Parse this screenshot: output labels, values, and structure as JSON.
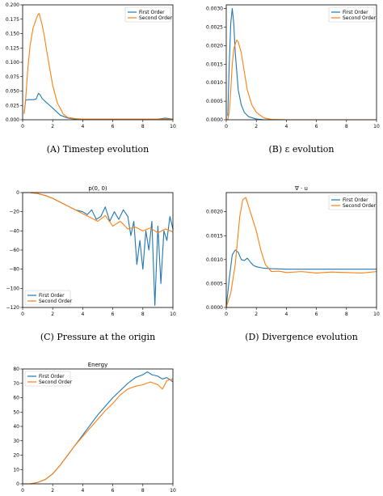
{
  "chart_data": [
    {
      "type": "line",
      "title": "",
      "caption": "(A) Timestep evolution",
      "xlim": [
        0,
        10
      ],
      "ylim": [
        0,
        0.2
      ],
      "xticks": [
        "0",
        "2",
        "4",
        "6",
        "8",
        "10"
      ],
      "yticks": [
        "0.000",
        "0.025",
        "0.050",
        "0.075",
        "0.100",
        "0.125",
        "0.150",
        "0.175",
        "0.200"
      ],
      "legend_position": "top-right",
      "series": [
        {
          "name": "First Order",
          "color": "#1f77b4",
          "x": [
            0.1,
            0.2,
            0.35,
            0.5,
            0.7,
            0.9,
            1.05,
            1.15,
            1.3,
            1.5,
            1.8,
            2.1,
            2.5,
            3.0,
            3.5,
            4.0,
            5.0,
            6.0,
            7.0,
            8.0,
            9.0,
            9.5,
            10.0
          ],
          "values": [
            0.012,
            0.034,
            0.035,
            0.035,
            0.035,
            0.036,
            0.046,
            0.044,
            0.037,
            0.032,
            0.025,
            0.018,
            0.008,
            0.003,
            0.001,
            0.001,
            0.001,
            0.001,
            0.001,
            0.001,
            0.001,
            0.003,
            0.001
          ]
        },
        {
          "name": "Second Order",
          "color": "#ff7f0e",
          "x": [
            0.1,
            0.2,
            0.35,
            0.5,
            0.7,
            0.9,
            1.0,
            1.1,
            1.2,
            1.3,
            1.45,
            1.6,
            1.8,
            2.0,
            2.3,
            2.7,
            3.0,
            3.5,
            4.0,
            5.0,
            6.0,
            7.0,
            8.0,
            9.0,
            10.0
          ],
          "values": [
            0.01,
            0.035,
            0.09,
            0.13,
            0.16,
            0.175,
            0.182,
            0.185,
            0.175,
            0.165,
            0.145,
            0.12,
            0.09,
            0.06,
            0.03,
            0.01,
            0.004,
            0.002,
            0.001,
            0.001,
            0.001,
            0.001,
            0.001,
            0.001,
            0.001
          ]
        }
      ]
    },
    {
      "type": "line",
      "title": "",
      "caption": "(B) ε evolution",
      "xlim": [
        0,
        10
      ],
      "ylim": [
        0,
        0.0031
      ],
      "xticks": [
        "0",
        "2",
        "4",
        "6",
        "8",
        "10"
      ],
      "yticks": [
        "0.0000",
        "0.0005",
        "0.0010",
        "0.0015",
        "0.0020",
        "0.0025",
        "0.0030"
      ],
      "legend_position": "top-right",
      "series": [
        {
          "name": "First Order",
          "color": "#1f77b4",
          "x": [
            0.1,
            0.2,
            0.3,
            0.4,
            0.5,
            0.6,
            0.8,
            1.0,
            1.2,
            1.5,
            2.0,
            2.5,
            3.0,
            4.0,
            6.0,
            8.0,
            10.0
          ],
          "values": [
            0.0001,
            0.0015,
            0.0026,
            0.003,
            0.0026,
            0.0018,
            0.0008,
            0.0004,
            0.0002,
            8e-05,
            2e-05,
            0,
            0,
            0,
            0,
            0,
            0
          ]
        },
        {
          "name": "Second Order",
          "color": "#ff7f0e",
          "x": [
            0.1,
            0.2,
            0.3,
            0.4,
            0.5,
            0.6,
            0.7,
            0.8,
            1.0,
            1.2,
            1.4,
            1.7,
            2.0,
            2.5,
            3.0,
            4.0,
            6.0,
            8.0,
            10.0
          ],
          "values": [
            0.0,
            0.0002,
            0.0008,
            0.0015,
            0.0019,
            0.00205,
            0.00215,
            0.0021,
            0.0018,
            0.0013,
            0.0008,
            0.0004,
            0.0002,
            5e-05,
            1e-05,
            0,
            0,
            0,
            0
          ]
        }
      ]
    },
    {
      "type": "line",
      "title": "p(0, 0)",
      "caption": "(C) Pressure at the origin",
      "xlim": [
        0,
        10
      ],
      "ylim": [
        -120,
        0
      ],
      "xticks": [
        "0",
        "2",
        "4",
        "6",
        "8",
        "10"
      ],
      "yticks": [
        "0",
        "−20",
        "−40",
        "−60",
        "−80",
        "−100",
        "−120"
      ],
      "legend_position": "bottom-left",
      "series": [
        {
          "name": "First Order",
          "color": "#1f77b4",
          "x": [
            0,
            0.5,
            1,
            1.5,
            2,
            2.5,
            3,
            3.5,
            4,
            4.3,
            4.6,
            4.9,
            5.2,
            5.5,
            5.8,
            6.1,
            6.4,
            6.7,
            7.0,
            7.2,
            7.4,
            7.6,
            7.8,
            8.0,
            8.2,
            8.4,
            8.6,
            8.8,
            9.0,
            9.2,
            9.4,
            9.6,
            9.8,
            10.0
          ],
          "values": [
            0,
            0,
            -1,
            -3,
            -6,
            -10,
            -14,
            -18,
            -20,
            -23,
            -18,
            -28,
            -25,
            -15,
            -30,
            -20,
            -28,
            -18,
            -25,
            -45,
            -30,
            -75,
            -50,
            -80,
            -40,
            -60,
            -30,
            -118,
            -35,
            -95,
            -40,
            -50,
            -25,
            -38
          ]
        },
        {
          "name": "Second Order",
          "color": "#ff7f0e",
          "x": [
            0,
            0.5,
            1,
            1.5,
            2,
            2.5,
            3,
            3.5,
            4,
            4.5,
            5.0,
            5.5,
            6.0,
            6.5,
            7.0,
            7.5,
            8.0,
            8.5,
            9.0,
            9.5,
            10.0
          ],
          "values": [
            0,
            0,
            -1,
            -3,
            -6,
            -10,
            -14,
            -18,
            -22,
            -26,
            -30,
            -24,
            -35,
            -30,
            -38,
            -36,
            -40,
            -37,
            -42,
            -38,
            -41
          ]
        }
      ]
    },
    {
      "type": "line",
      "title": "∇ · u",
      "caption": "(D) Divergence evolution",
      "xlim": [
        0,
        10
      ],
      "ylim": [
        0,
        0.0024
      ],
      "xticks": [
        "0",
        "2",
        "4",
        "6",
        "8",
        "10"
      ],
      "yticks": [
        "0.0000",
        "0.0005",
        "0.0010",
        "0.0015",
        "0.0020"
      ],
      "legend_position": "top-right",
      "series": [
        {
          "name": "First Order",
          "color": "#1f77b4",
          "x": [
            0,
            0.2,
            0.4,
            0.6,
            0.8,
            1.0,
            1.2,
            1.4,
            1.6,
            1.8,
            2.0,
            2.5,
            3.0,
            4.0,
            5.0,
            6.0,
            7.0,
            8.0,
            9.0,
            10.0
          ],
          "values": [
            0,
            0.0006,
            0.0011,
            0.0012,
            0.00115,
            0.001,
            0.00098,
            0.00103,
            0.00095,
            0.00088,
            0.00085,
            0.00082,
            0.00081,
            0.0008,
            0.0008,
            0.0008,
            0.0008,
            0.0008,
            0.0008,
            0.0008
          ]
        },
        {
          "name": "Second Order",
          "color": "#ff7f0e",
          "x": [
            0,
            0.3,
            0.6,
            0.9,
            1.1,
            1.3,
            1.5,
            1.7,
            2.0,
            2.3,
            2.6,
            3.0,
            3.5,
            4.0,
            5.0,
            6.0,
            7.0,
            8.0,
            9.0,
            10.0
          ],
          "values": [
            0,
            0.0003,
            0.0009,
            0.0019,
            0.00225,
            0.0023,
            0.0021,
            0.0019,
            0.0016,
            0.0012,
            0.0009,
            0.00075,
            0.00076,
            0.00073,
            0.00075,
            0.00072,
            0.00074,
            0.00073,
            0.00072,
            0.00075
          ]
        }
      ]
    },
    {
      "type": "line",
      "title": "Energy",
      "caption": "",
      "xlim": [
        0,
        10
      ],
      "ylim": [
        0,
        80
      ],
      "xticks": [
        "0",
        "2",
        "4",
        "6",
        "8",
        "10"
      ],
      "yticks": [
        "0",
        "10",
        "20",
        "30",
        "40",
        "50",
        "60",
        "70",
        "80"
      ],
      "legend_position": "top-left",
      "series": [
        {
          "name": "First Order",
          "color": "#1f77b4",
          "x": [
            0,
            0.5,
            1.0,
            1.5,
            2.0,
            2.5,
            3.0,
            3.5,
            4.0,
            4.5,
            5.0,
            5.5,
            6.0,
            6.5,
            7.0,
            7.5,
            8.0,
            8.3,
            8.6,
            9.0,
            9.3,
            9.6,
            10.0
          ],
          "values": [
            0,
            0,
            1,
            3,
            7,
            13,
            20,
            27,
            34,
            41,
            48,
            54,
            60,
            65,
            70,
            74,
            76,
            78,
            76,
            75,
            73,
            74,
            71
          ]
        },
        {
          "name": "Second Order",
          "color": "#ff7f0e",
          "x": [
            0,
            0.5,
            1.0,
            1.5,
            2.0,
            2.5,
            3.0,
            3.5,
            4.0,
            4.5,
            5.0,
            5.5,
            6.0,
            6.5,
            7.0,
            7.5,
            8.0,
            8.5,
            9.0,
            9.3,
            9.6,
            10.0
          ],
          "values": [
            0,
            0,
            1,
            3,
            7,
            13,
            20,
            27,
            33,
            39,
            45,
            51,
            56,
            62,
            66,
            68,
            69,
            71,
            69,
            66,
            72,
            73
          ]
        }
      ]
    }
  ]
}
